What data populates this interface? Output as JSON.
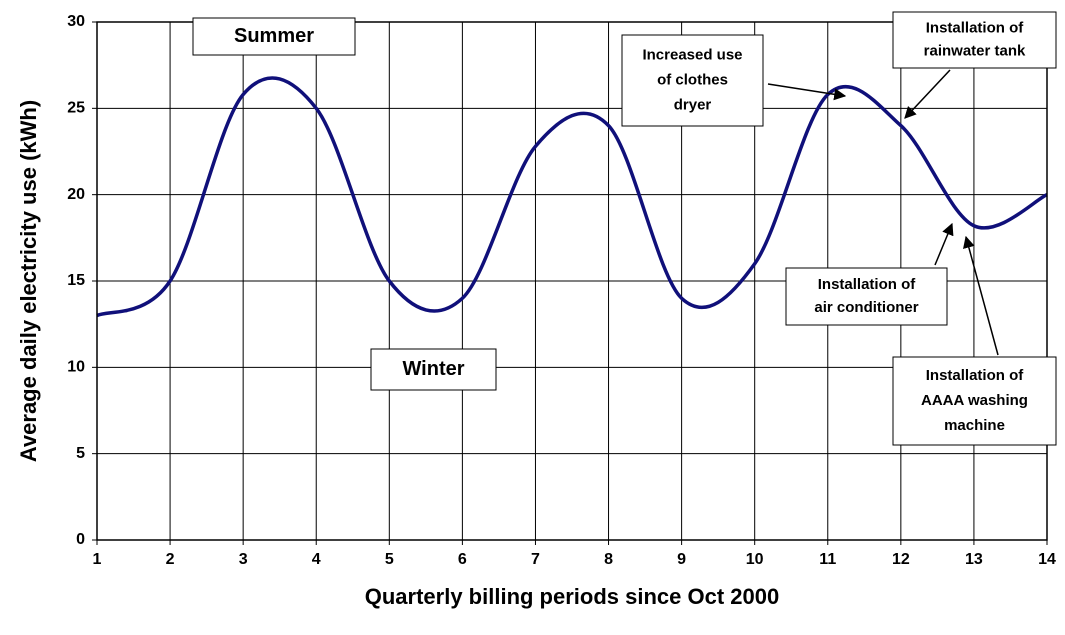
{
  "chart_data": {
    "type": "line",
    "x_label": "Quarterly billing periods since Oct 2000",
    "y_label": "Average daily electricity use (kWh)",
    "x": [
      1,
      2,
      3,
      4,
      5,
      6,
      7,
      8,
      9,
      10,
      11,
      12,
      13,
      14
    ],
    "series": [
      {
        "color": "#10107a",
        "values": [
          13,
          15,
          25.8,
          25,
          15,
          14,
          22.8,
          24,
          14,
          16,
          25.8,
          24,
          18.2,
          20
        ]
      }
    ],
    "xlim": [
      1,
      14
    ],
    "xticks": [
      1,
      2,
      3,
      4,
      5,
      6,
      7,
      8,
      9,
      10,
      11,
      12,
      13,
      14
    ],
    "ylim": [
      0,
      30
    ],
    "yticks": [
      0,
      5,
      10,
      15,
      20,
      25,
      30
    ],
    "grid": true,
    "smooth": true,
    "annotations": [
      {
        "lines": [
          "Summer"
        ]
      },
      {
        "lines": [
          "Winter"
        ]
      },
      {
        "lines": [
          "Increased use",
          "of clothes",
          "dryer"
        ]
      },
      {
        "lines": [
          "Installation of",
          "rainwater tank"
        ]
      },
      {
        "lines": [
          "Installation of",
          "air conditioner"
        ]
      },
      {
        "lines": [
          "Installation of",
          "AAAA washing",
          "machine"
        ]
      }
    ]
  }
}
